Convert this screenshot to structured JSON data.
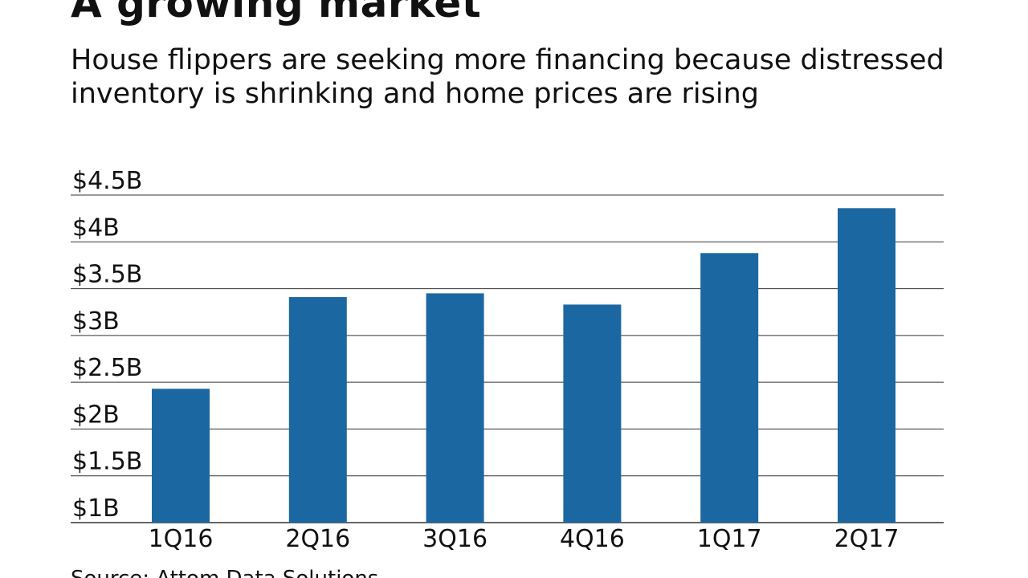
{
  "chart_data": {
    "type": "bar",
    "title": "A growing market",
    "subtitle": "House flippers are seeking more financing because distressed inventory is shrinking and home prices are rising",
    "xlabel": "",
    "ylabel": "",
    "categories": [
      "1Q16",
      "2Q16",
      "3Q16",
      "4Q16",
      "1Q17",
      "2Q17"
    ],
    "values": [
      2.43,
      3.41,
      3.45,
      3.33,
      3.88,
      4.36
    ],
    "ylim": [
      1,
      4.5
    ],
    "yticks": [
      1,
      1.5,
      2,
      2.5,
      3,
      3.5,
      4,
      4.5
    ],
    "ytick_labels": [
      "$1B",
      "$1.5B",
      "$2B",
      "$2.5B",
      "$3B",
      "$3.5B",
      "$4B",
      "$4.5B"
    ],
    "units": "billions of dollars",
    "grid": true,
    "bar_color": "#1b67a1",
    "grid_color": "#333333",
    "source": "Source: Attom Data Solutions"
  }
}
